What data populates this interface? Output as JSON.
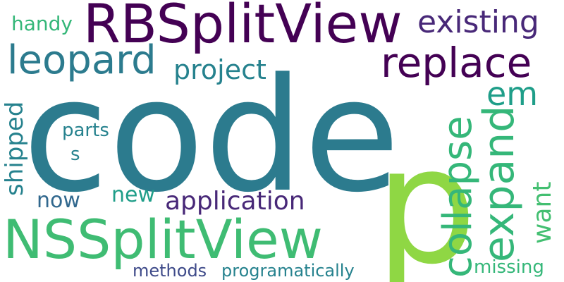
{
  "words": {
    "code": "code",
    "rbsplitview": "RBSplitView",
    "nssplitview": "NSSplitView",
    "p": "p",
    "replace": "replace",
    "leopard": "leopard",
    "existing": "existing",
    "expand": "expand",
    "collapse": "collapse",
    "project": "project",
    "em": "em",
    "application": "application",
    "handy": "handy",
    "shipped": "shipped",
    "parts": "parts",
    "s": "s",
    "now": "now",
    "new": "new",
    "want": "want",
    "methods": "methods",
    "programatically": "programatically",
    "missing": "missing"
  },
  "colors": {
    "dark_purple": "#440154",
    "purple": "#482878",
    "indigo": "#3e4a89",
    "blue": "#31688e",
    "teal_blue": "#2c7b8e",
    "teal": "#26828e",
    "green_teal": "#1f9e89",
    "green": "#35b779",
    "light_green": "#43bf71",
    "lime": "#8fd744"
  }
}
